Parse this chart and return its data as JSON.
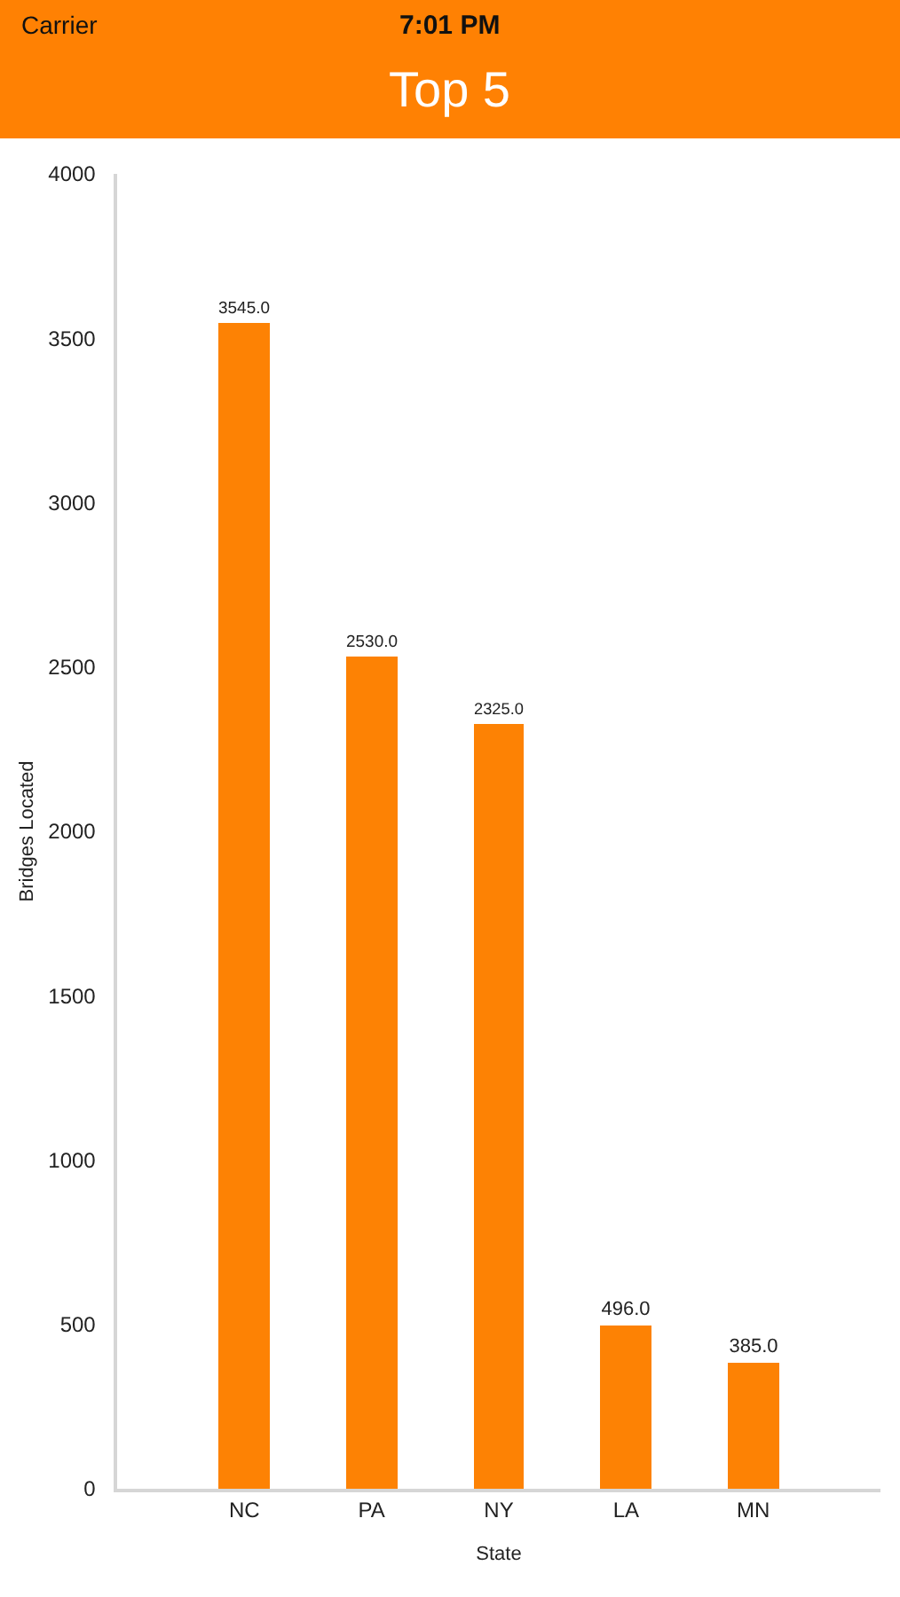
{
  "chart_data": {
    "type": "bar",
    "title": "Top 5",
    "xlabel": "State",
    "ylabel": "Bridges Located",
    "categories": [
      "NC",
      "PA",
      "NY",
      "LA",
      "MN"
    ],
    "values": [
      3545,
      2530,
      2325,
      496,
      385
    ],
    "value_labels": [
      "3545.0",
      "2530.0",
      "2325.0",
      "496.0",
      "385.0"
    ],
    "color": "#fd8204",
    "ylim": [
      0,
      4000
    ],
    "yticks": [
      0,
      500,
      1000,
      1500,
      2000,
      2500,
      3000,
      3500,
      4000
    ],
    "grid": false,
    "annotations": [
      "Carrier",
      "7:01 PM"
    ]
  }
}
